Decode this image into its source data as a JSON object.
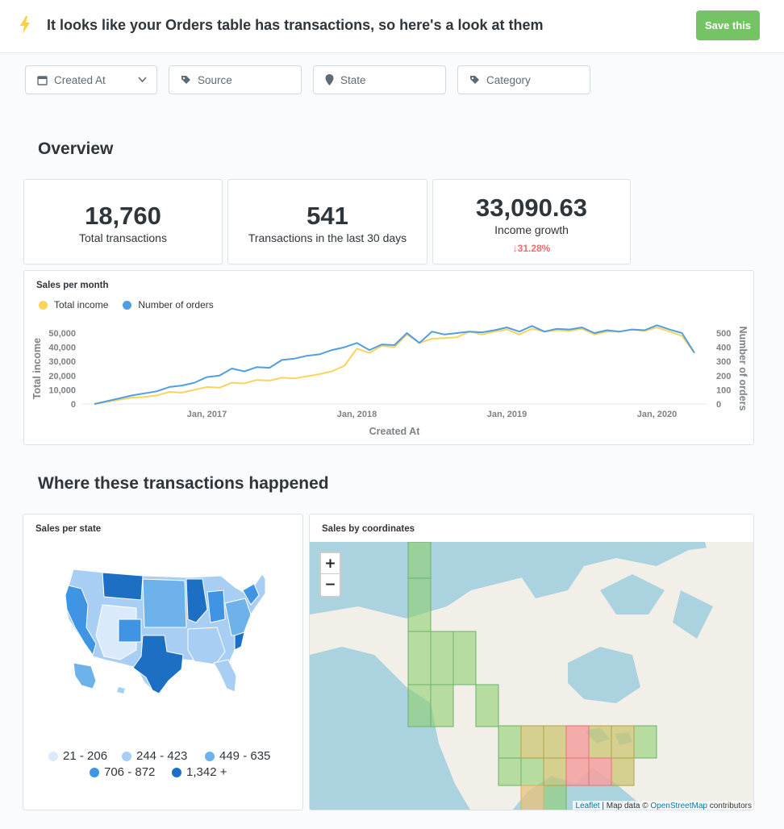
{
  "header": {
    "title": "It looks like your Orders table has transactions, so here's a look at them",
    "save_label": "Save this",
    "bolt_icon": "bolt-icon"
  },
  "filters": [
    {
      "label": "Created At",
      "icon": "calendar-icon"
    },
    {
      "label": "Source",
      "icon": "tag-icon"
    },
    {
      "label": "State",
      "icon": "location-pin-icon"
    },
    {
      "label": "Category",
      "icon": "tag-icon"
    }
  ],
  "overview": {
    "title": "Overview",
    "kpis": [
      {
        "value": "18,760",
        "label": "Total transactions"
      },
      {
        "value": "541",
        "label": "Transactions in the last 30 days"
      },
      {
        "value": "33,090.63",
        "label": "Income growth",
        "change": "31.28%",
        "change_arrow": "↓"
      }
    ]
  },
  "sales_chart": {
    "title": "Sales per month",
    "legend": [
      "Total income",
      "Number of orders"
    ]
  },
  "chart_data": {
    "type": "line",
    "title": "Sales per month",
    "xlabel": "Created At",
    "ylabel": "Total income",
    "y2label": "Number of orders",
    "x_ticks": [
      "Jan, 2017",
      "Jan, 2018",
      "Jan, 2019",
      "Jan, 2020"
    ],
    "y_ticks": [
      "0",
      "10,000",
      "20,000",
      "30,000",
      "40,000",
      "50,000"
    ],
    "y2_ticks": [
      "0",
      "100",
      "200",
      "300",
      "400",
      "500"
    ],
    "ylim": [
      0,
      50000
    ],
    "y2lim": [
      0,
      500
    ],
    "x": [
      "2016-04",
      "2016-05",
      "2016-06",
      "2016-07",
      "2016-08",
      "2016-09",
      "2016-10",
      "2016-11",
      "2016-12",
      "2017-01",
      "2017-02",
      "2017-03",
      "2017-04",
      "2017-05",
      "2017-06",
      "2017-07",
      "2017-08",
      "2017-09",
      "2017-10",
      "2017-11",
      "2017-12",
      "2018-01",
      "2018-02",
      "2018-03",
      "2018-04",
      "2018-05",
      "2018-06",
      "2018-07",
      "2018-08",
      "2018-09",
      "2018-10",
      "2018-11",
      "2018-12",
      "2019-01",
      "2019-02",
      "2019-03",
      "2019-04",
      "2019-05",
      "2019-06",
      "2019-07",
      "2019-08",
      "2019-09",
      "2019-10",
      "2019-11",
      "2019-12",
      "2020-01",
      "2020-02",
      "2020-03",
      "2020-04"
    ],
    "series": [
      {
        "name": "Total income",
        "color": "#f9d45c",
        "axis": "left",
        "values": [
          0,
          1500,
          3000,
          4500,
          5000,
          6000,
          8500,
          8000,
          10000,
          12000,
          11500,
          15000,
          14500,
          17000,
          16500,
          18500,
          18000,
          19500,
          21000,
          23000,
          27000,
          39000,
          36000,
          41000,
          40000,
          49000,
          43000,
          46000,
          46500,
          47000,
          51000,
          49000,
          51000,
          52500,
          49000,
          53000,
          51000,
          52000,
          51500,
          53000,
          49000,
          51000,
          51000,
          52500,
          51500,
          54000,
          51000,
          48000,
          36000
        ]
      },
      {
        "name": "Number of orders",
        "color": "#509ee3",
        "axis": "right",
        "values": [
          0,
          20,
          40,
          60,
          75,
          90,
          120,
          130,
          150,
          190,
          200,
          250,
          230,
          260,
          255,
          310,
          320,
          340,
          350,
          380,
          400,
          430,
          380,
          420,
          415,
          500,
          430,
          510,
          490,
          500,
          510,
          505,
          520,
          540,
          510,
          550,
          510,
          530,
          525,
          540,
          500,
          520,
          510,
          525,
          520,
          555,
          525,
          500,
          360
        ]
      }
    ]
  },
  "where": {
    "title": "Where these transactions happened",
    "state_card_title": "Sales per state",
    "coords_card_title": "Sales by coordinates",
    "state_legend": [
      {
        "label": "21 - 206",
        "color": "#dbeafa"
      },
      {
        "label": "244 - 423",
        "color": "#a8cff3"
      },
      {
        "label": "449 - 635",
        "color": "#6eb2ec"
      },
      {
        "label": "706 - 872",
        "color": "#3f95e3"
      },
      {
        "label": "1,342 +",
        "color": "#1d6fc4"
      }
    ],
    "zoom_in": "+",
    "zoom_out": "−",
    "attribution": {
      "leaflet": "Leaflet",
      "sep": " | Map data © ",
      "osm": "OpenStreetMap",
      "rest": " contributors"
    }
  }
}
